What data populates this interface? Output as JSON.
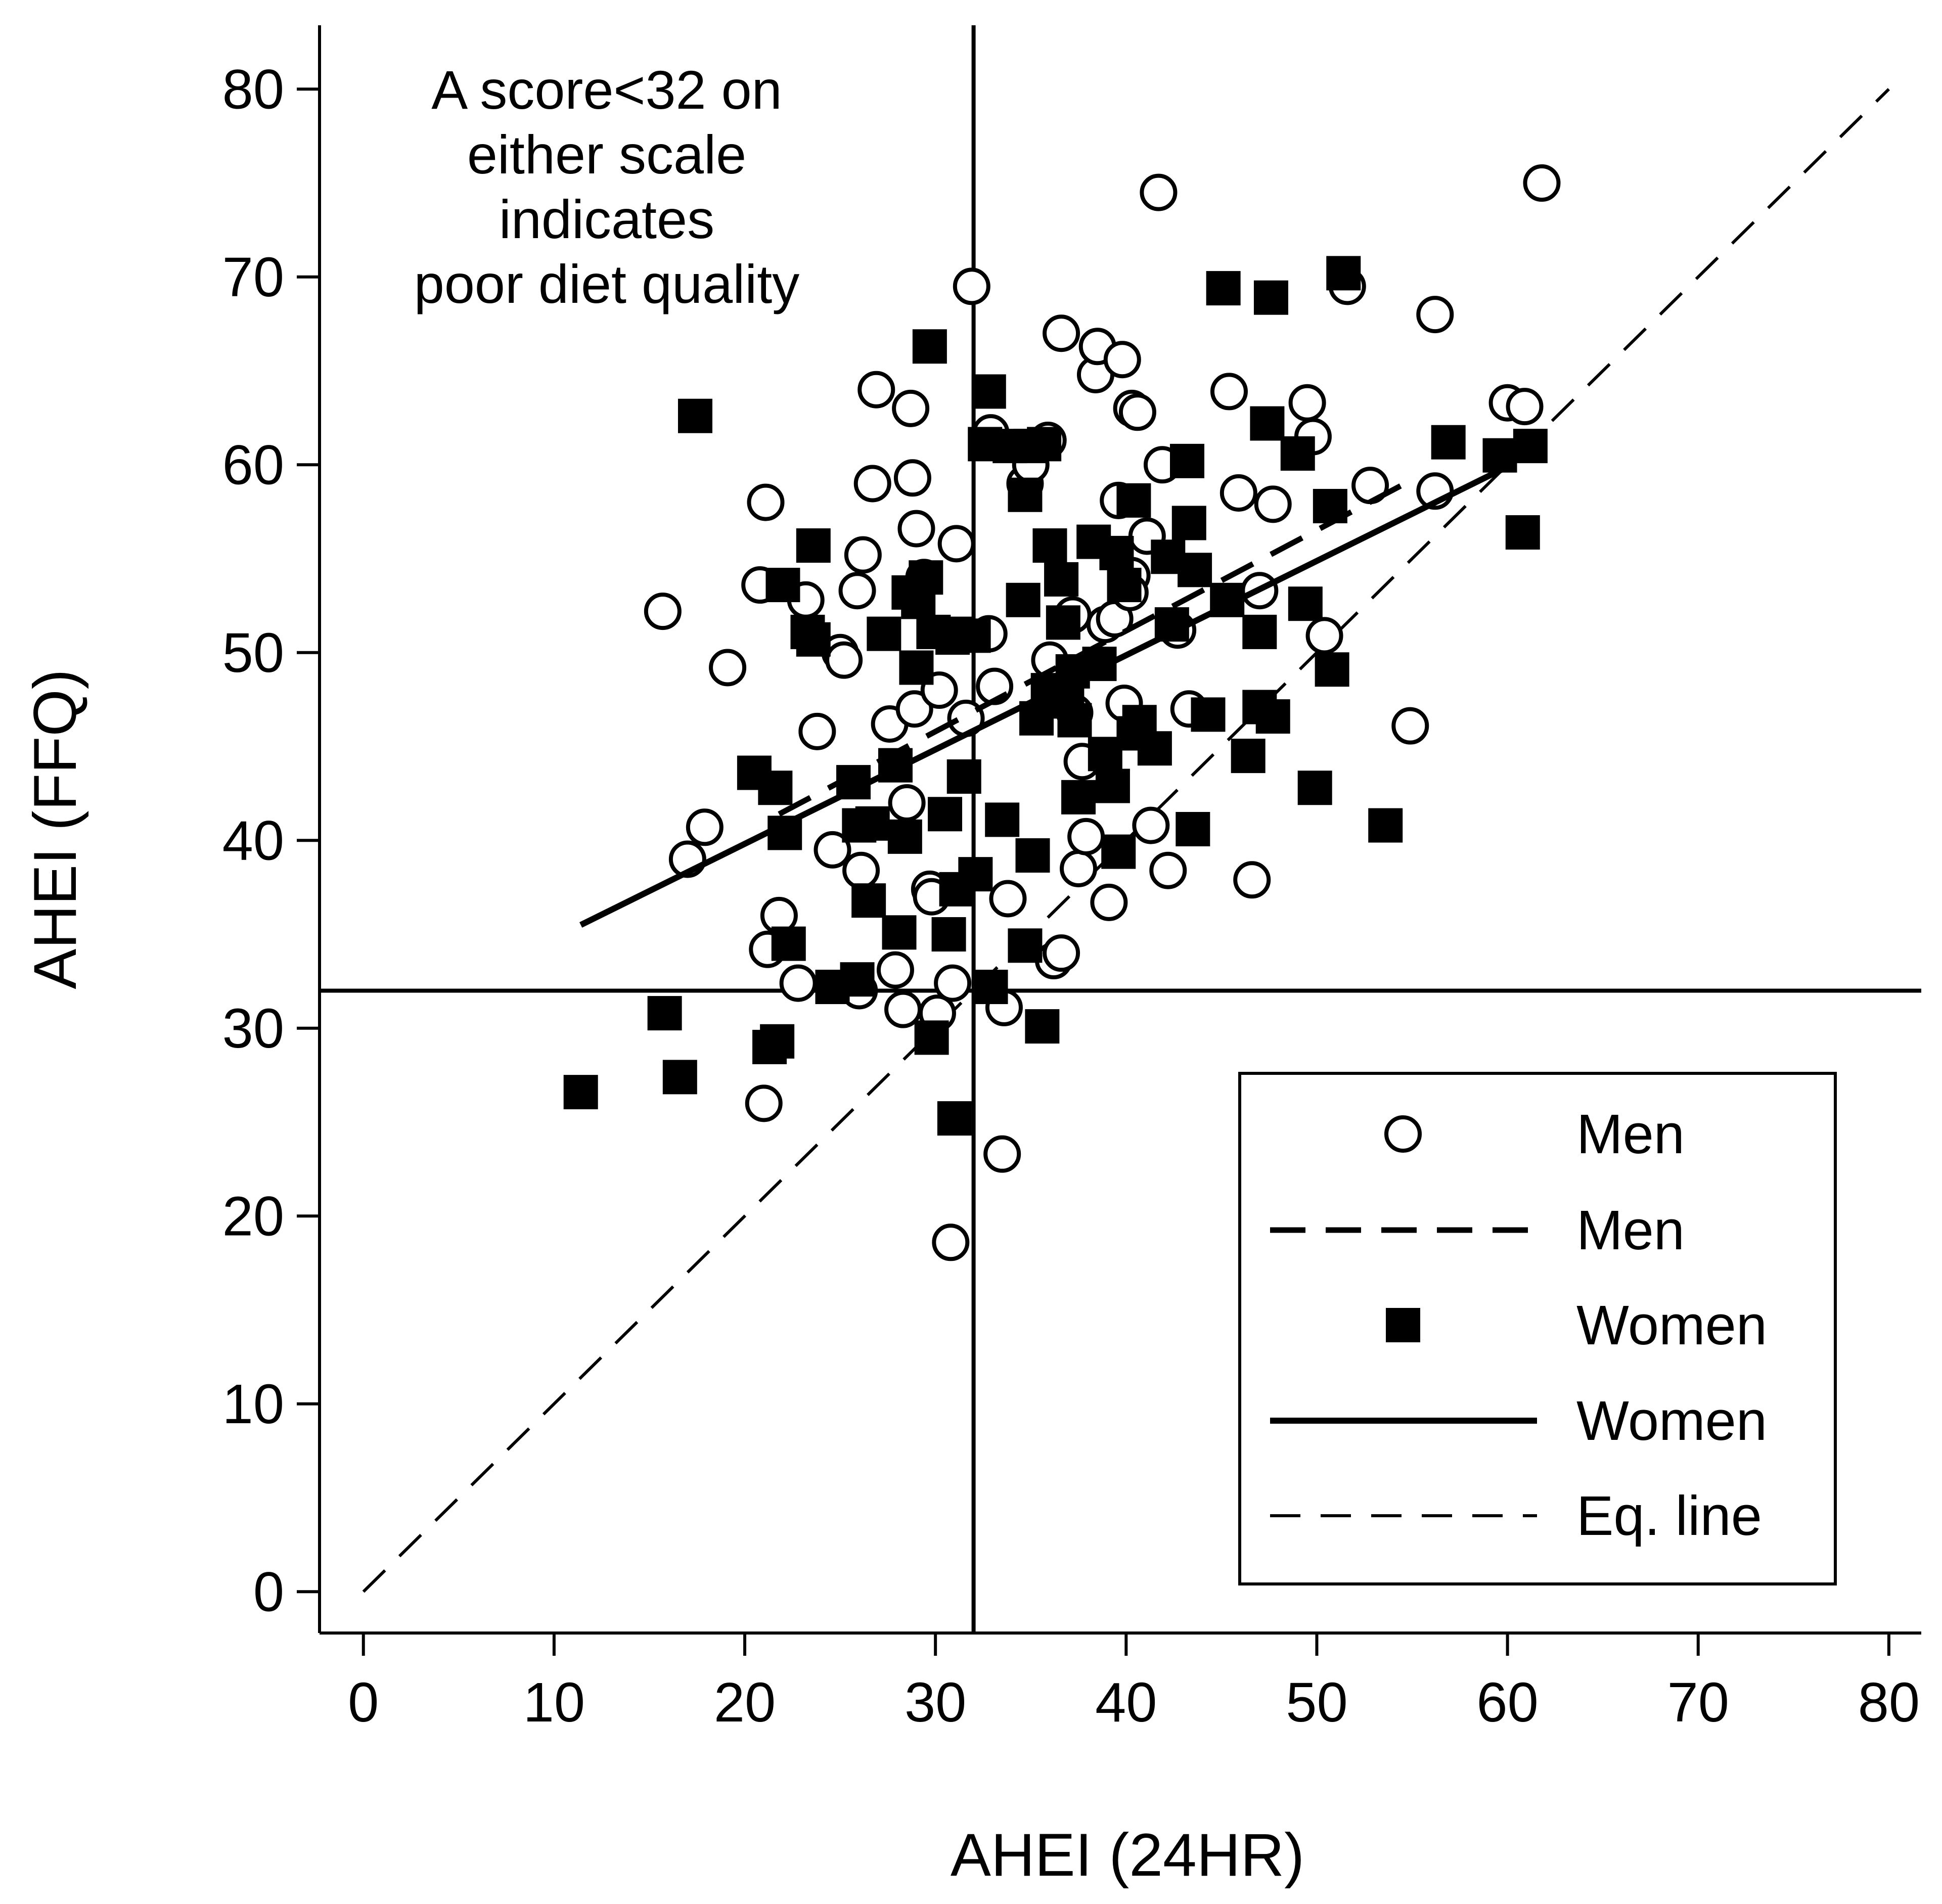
{
  "chart_data": {
    "type": "scatter",
    "xlabel": "AHEI (24HR)",
    "ylabel": "AHEI (FFQ)",
    "xlim": [
      -2.3,
      81.7
    ],
    "ylim": [
      -2.2,
      83.4
    ],
    "xticks": [
      0,
      10,
      20,
      30,
      40,
      50,
      60,
      70,
      80
    ],
    "yticks": [
      0,
      10,
      20,
      30,
      40,
      50,
      60,
      70,
      80
    ],
    "cutoff": 32,
    "annotation_lines": [
      "A score<32 on",
      "either scale",
      "indicates",
      "poor diet quality"
    ],
    "series": [
      {
        "name": "Men",
        "kind": "points",
        "marker": "open-circle",
        "points": [
          [
            15.7,
            52.2
          ],
          [
            17,
            39
          ],
          [
            17.9,
            40.7
          ],
          [
            19.1,
            49.2
          ],
          [
            20.8,
            53.6
          ],
          [
            21.1,
            58
          ],
          [
            21,
            26
          ],
          [
            21.2,
            34.2
          ],
          [
            21.8,
            36
          ],
          [
            22.8,
            32.4
          ],
          [
            23.2,
            52.8
          ],
          [
            23.8,
            45.8
          ],
          [
            24.6,
            39.5
          ],
          [
            25,
            50
          ],
          [
            25.2,
            49.6
          ],
          [
            25.9,
            53.3
          ],
          [
            26.2,
            55.2
          ],
          [
            26.1,
            38.4
          ],
          [
            26,
            32
          ],
          [
            26.7,
            59
          ],
          [
            26.9,
            64
          ],
          [
            27.6,
            46.2
          ],
          [
            27.9,
            33.1
          ],
          [
            28.3,
            31
          ],
          [
            28.5,
            42
          ],
          [
            28.7,
            63
          ],
          [
            28.8,
            59.3
          ],
          [
            28.9,
            47
          ],
          [
            29,
            56.6
          ],
          [
            29.4,
            54
          ],
          [
            29.7,
            37.4
          ],
          [
            29.8,
            37
          ],
          [
            30.2,
            48
          ],
          [
            30.1,
            30.8
          ],
          [
            30.8,
            18.6
          ],
          [
            30.9,
            32.4
          ],
          [
            31.1,
            55.8
          ],
          [
            31.6,
            46.5
          ],
          [
            31.9,
            69.5
          ],
          [
            32.8,
            51
          ],
          [
            32.9,
            61.7
          ],
          [
            33.1,
            48.2
          ],
          [
            33.5,
            23.3
          ],
          [
            33.6,
            31.1
          ],
          [
            33.8,
            36.9
          ],
          [
            34.7,
            59
          ],
          [
            35,
            60
          ],
          [
            35.9,
            61.3
          ],
          [
            36,
            49.6
          ],
          [
            36.2,
            33.6
          ],
          [
            36.6,
            34
          ],
          [
            36.6,
            67
          ],
          [
            37.2,
            52
          ],
          [
            37.5,
            38.5
          ],
          [
            37.7,
            44.2
          ],
          [
            37.9,
            40.2
          ],
          [
            37.3,
            46.8
          ],
          [
            38.4,
            64.8
          ],
          [
            38.5,
            66.3
          ],
          [
            38.9,
            51.5
          ],
          [
            39.1,
            36.7
          ],
          [
            39.4,
            51.8
          ],
          [
            39.6,
            58.1
          ],
          [
            39.8,
            65.6
          ],
          [
            39.9,
            47.3
          ],
          [
            40.3,
            63
          ],
          [
            40.3,
            54.1
          ],
          [
            40.2,
            53.2
          ],
          [
            40.6,
            62.8
          ],
          [
            41.1,
            56.2
          ],
          [
            41.3,
            40.8
          ],
          [
            41.7,
            74.5
          ],
          [
            41.9,
            60
          ],
          [
            42.2,
            38.4
          ],
          [
            42.7,
            51.2
          ],
          [
            43.3,
            47
          ],
          [
            45.4,
            63.9
          ],
          [
            45.9,
            58.5
          ],
          [
            46.6,
            37.9
          ],
          [
            47,
            53.3
          ],
          [
            47.7,
            57.9
          ],
          [
            49.5,
            63.3
          ],
          [
            49.8,
            61.5
          ],
          [
            50.4,
            50.9
          ],
          [
            51.6,
            69.5
          ],
          [
            52.8,
            58.9
          ],
          [
            54.9,
            46.1
          ],
          [
            56.2,
            68
          ],
          [
            56.2,
            58.6
          ],
          [
            60,
            63.3
          ],
          [
            60.9,
            63.1
          ],
          [
            61.8,
            75
          ]
        ]
      },
      {
        "name": "Men",
        "kind": "fit",
        "line_style": "dashed",
        "endpoints": [
          [
            21.8,
            41.4
          ],
          [
            55,
            59.2
          ]
        ]
      },
      {
        "name": "Women",
        "kind": "points",
        "marker": "filled-square",
        "points": [
          [
            11.4,
            26.6
          ],
          [
            15.8,
            30.8
          ],
          [
            16.6,
            27.4
          ],
          [
            17.4,
            62.6
          ],
          [
            20.5,
            43.6
          ],
          [
            21.3,
            29
          ],
          [
            21.6,
            42.8
          ],
          [
            21.7,
            29.3
          ],
          [
            22,
            53.6
          ],
          [
            22.1,
            40.4
          ],
          [
            22.3,
            34.5
          ],
          [
            23.3,
            51.1
          ],
          [
            23.6,
            55.7
          ],
          [
            23.6,
            50.7
          ],
          [
            24.6,
            32.2
          ],
          [
            25.7,
            43.1
          ],
          [
            25.9,
            32.6
          ],
          [
            26,
            40.8
          ],
          [
            26.5,
            36.8
          ],
          [
            26.7,
            40.9
          ],
          [
            27.3,
            51
          ],
          [
            27.9,
            44
          ],
          [
            28.1,
            35.1
          ],
          [
            28.4,
            40.2
          ],
          [
            28.6,
            53.2
          ],
          [
            29,
            49.2
          ],
          [
            29.1,
            52.7
          ],
          [
            29.5,
            54
          ],
          [
            29.7,
            66.3
          ],
          [
            29.8,
            29.5
          ],
          [
            29.9,
            51.1
          ],
          [
            30.5,
            41.4
          ],
          [
            30.7,
            35
          ],
          [
            30.9,
            50.8
          ],
          [
            31,
            25.2
          ],
          [
            31.1,
            37.4
          ],
          [
            31.2,
            51
          ],
          [
            31.5,
            43.4
          ],
          [
            32,
            50.9
          ],
          [
            32.1,
            38.2
          ],
          [
            32.6,
            61.1
          ],
          [
            32.8,
            63.9
          ],
          [
            32.9,
            32.2
          ],
          [
            33.5,
            41.1
          ],
          [
            33.9,
            61
          ],
          [
            34.6,
            52.8
          ],
          [
            34.7,
            34.4
          ],
          [
            34.7,
            58.4
          ],
          [
            35,
            61
          ],
          [
            35.1,
            39.2
          ],
          [
            35.3,
            46.5
          ],
          [
            35.6,
            30.1
          ],
          [
            35.7,
            61.1
          ],
          [
            35.9,
            48
          ],
          [
            36,
            55.7
          ],
          [
            36.6,
            53.9
          ],
          [
            36.9,
            47.4
          ],
          [
            36.7,
            51.6
          ],
          [
            37.2,
            49
          ],
          [
            37.5,
            42.3
          ],
          [
            37.3,
            46.4
          ],
          [
            38.3,
            55.9
          ],
          [
            38.6,
            49.4
          ],
          [
            38.9,
            44.6
          ],
          [
            39.3,
            42.9
          ],
          [
            39.5,
            55.3
          ],
          [
            39.6,
            39.4
          ],
          [
            39.9,
            53.6
          ],
          [
            40.4,
            58.1
          ],
          [
            40.4,
            45.7
          ],
          [
            40.7,
            46.3
          ],
          [
            41.5,
            44.9
          ],
          [
            42.2,
            55.1
          ],
          [
            42.4,
            51.5
          ],
          [
            43.2,
            60.2
          ],
          [
            43.3,
            56.9
          ],
          [
            43.6,
            54.4
          ],
          [
            43.5,
            40.6
          ],
          [
            44.3,
            46.7
          ],
          [
            45.1,
            69.4
          ],
          [
            45.3,
            52.8
          ],
          [
            46.4,
            44.5
          ],
          [
            47,
            51.1
          ],
          [
            47,
            47.1
          ],
          [
            47.4,
            62.2
          ],
          [
            47.6,
            68.9
          ],
          [
            47.7,
            46.6
          ],
          [
            49,
            60.6
          ],
          [
            49.4,
            52.6
          ],
          [
            49.9,
            42.8
          ],
          [
            50.7,
            57.8
          ],
          [
            50.8,
            49.1
          ],
          [
            51.4,
            70.2
          ],
          [
            53.6,
            40.8
          ],
          [
            56.9,
            61.2
          ],
          [
            59.6,
            60.5
          ],
          [
            60.8,
            56.4
          ],
          [
            61.2,
            61
          ]
        ]
      },
      {
        "name": "Women",
        "kind": "fit",
        "line_style": "solid",
        "endpoints": [
          [
            11.4,
            35.5
          ],
          [
            59.8,
            59.8
          ]
        ]
      },
      {
        "name": "Eq. line",
        "kind": "reference",
        "line_style": "dashed-thin",
        "endpoints": [
          [
            0,
            0
          ],
          [
            80,
            80
          ]
        ]
      }
    ],
    "legend": {
      "position": "bottom-right",
      "entries": [
        {
          "symbol": "open-circle",
          "label": "Men"
        },
        {
          "symbol": "dashed-line",
          "label": "Men"
        },
        {
          "symbol": "filled-square",
          "label": "Women"
        },
        {
          "symbol": "solid-line",
          "label": "Women"
        },
        {
          "symbol": "thin-dashed-line",
          "label": "Eq. line"
        }
      ]
    }
  }
}
